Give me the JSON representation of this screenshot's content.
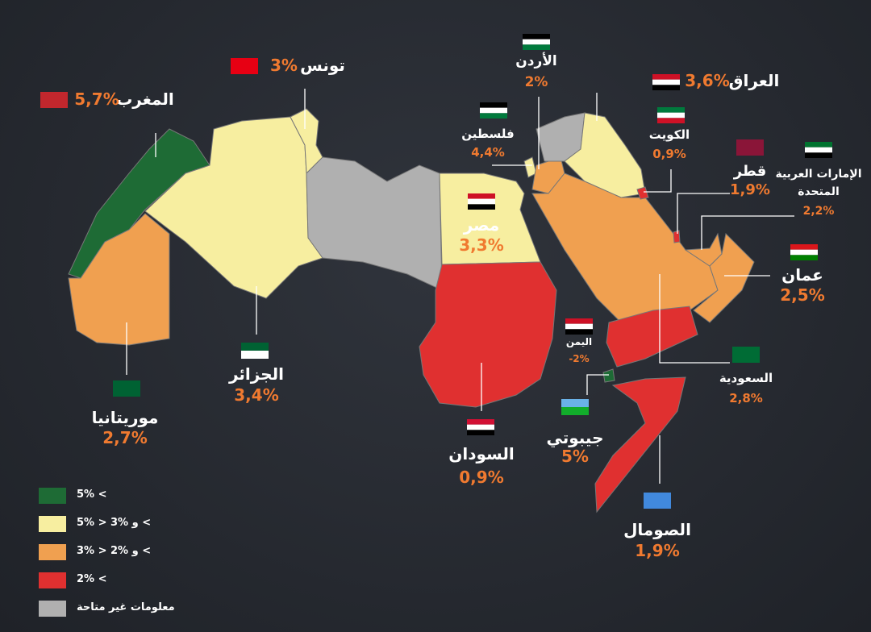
{
  "countries": [
    {
      "name": "المغرب",
      "value": "5,7%"
    },
    {
      "name": "تونس",
      "value": "3%"
    },
    {
      "name": "الأردن",
      "value": "2%"
    },
    {
      "name": "العراق",
      "value": "3,6%"
    },
    {
      "name": "فلسطين",
      "value": "4,4%"
    },
    {
      "name": "الكويت",
      "value": "0,9%"
    },
    {
      "name": "قطر",
      "value": "1,9%"
    },
    {
      "name": "الإمارات العربية المتحدة",
      "value": "2,2%"
    },
    {
      "name": "مصر",
      "value": "3,3%"
    },
    {
      "name": "عمان",
      "value": "2,5%"
    },
    {
      "name": "اليمن",
      "value": "-2%"
    },
    {
      "name": "السعودية",
      "value": "2,8%"
    },
    {
      "name": "الجزائر",
      "value": "3,4%"
    },
    {
      "name": "موريتانيا",
      "value": "2,7%"
    },
    {
      "name": "السودان",
      "value": "0,9%"
    },
    {
      "name": "جيبوتي",
      "value": "5%"
    },
    {
      "name": "الصومال",
      "value": "1,9%"
    }
  ],
  "legend": [
    "5% <",
    "5% > 3% و <",
    "3% > 2% و <",
    "2% <",
    "معلومات غير متاحة"
  ]
}
